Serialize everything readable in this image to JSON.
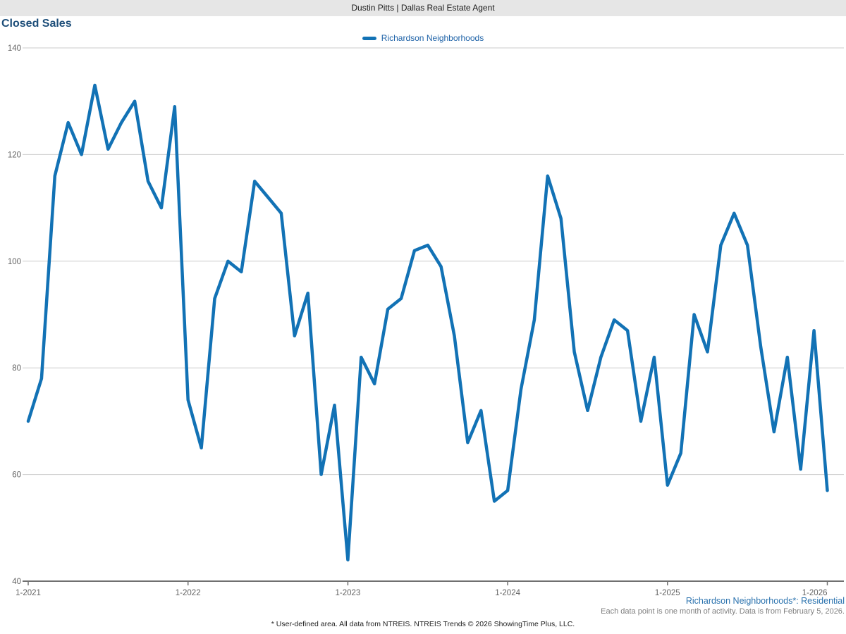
{
  "header": {
    "title": "Dustin Pitts | Dallas Real Estate Agent"
  },
  "page": {
    "title": "Closed Sales"
  },
  "legend": {
    "items": [
      {
        "label": "Richardson Neighborhoods",
        "color": "#1272b5"
      }
    ]
  },
  "chart_data": {
    "type": "line",
    "title": "Closed Sales",
    "series": [
      {
        "name": "Richardson Neighborhoods",
        "color": "#1272b5",
        "values": [
          70,
          78,
          116,
          126,
          120,
          133,
          121,
          126,
          130,
          115,
          110,
          129,
          74,
          65,
          93,
          100,
          98,
          115,
          112,
          109,
          86,
          94,
          60,
          73,
          44,
          82,
          77,
          91,
          93,
          102,
          103,
          99,
          86,
          66,
          72,
          55,
          57,
          76,
          89,
          116,
          108,
          83,
          72,
          82,
          89,
          87,
          70,
          82,
          58,
          64,
          90,
          83,
          103,
          109,
          103,
          84,
          68,
          82,
          61,
          87,
          57
        ]
      }
    ],
    "points_are": "monthly, Jan 2021 through Jan 2026",
    "x_tick_labels": [
      "1-2021",
      "1-2022",
      "1-2023",
      "1-2024",
      "1-2025",
      "1-2026"
    ],
    "x_tick_month_indexes": [
      0,
      12,
      24,
      36,
      48,
      60
    ],
    "y_ticks": [
      40,
      60,
      80,
      100,
      120,
      140
    ],
    "ylim": [
      40,
      140
    ],
    "grid": "horizontal",
    "legend_position": "top-center"
  },
  "footnotes": {
    "series_note": "Richardson Neighborhoods*: Residential",
    "activity_note": "Each data point is one month of activity. Data is from February 5, 2026.",
    "source_note": "* User-defined area. All data from NTREIS. NTREIS Trends © 2026 ShowingTime Plus, LLC."
  },
  "colors": {
    "line": "#1272b5",
    "grid": "#cbcbcb",
    "axis": "#707070",
    "tick_label": "#636363",
    "title": "#1d4e79",
    "header_bg": "#e6e6e6",
    "legend_text": "#1f63a8",
    "footnote_blue": "#2a72ae",
    "footnote_gray": "#7f7f7f"
  }
}
